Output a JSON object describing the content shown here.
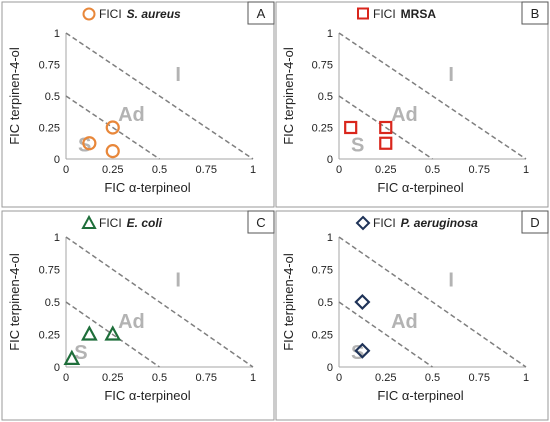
{
  "chart_data": [
    {
      "panel": "A",
      "type": "scatter",
      "legend": {
        "prefix": "FICI",
        "organism": "S. aureus",
        "organism_italic": true
      },
      "marker": {
        "shape": "circle",
        "color": "#e8873a"
      },
      "xlabel": "FIC α-terpineol",
      "ylabel": "FIC terpinen-4-ol",
      "xlim": [
        0,
        1
      ],
      "ylim": [
        0,
        1
      ],
      "xticks": [
        "0",
        "0.25",
        "0.5",
        "0.75",
        "1"
      ],
      "yticks": [
        "0",
        "0.25",
        "0.5",
        "0.75",
        "1"
      ],
      "lines": [
        {
          "from": [
            0,
            1
          ],
          "to": [
            1,
            0
          ]
        },
        {
          "from": [
            0,
            0.5
          ],
          "to": [
            0.5,
            0
          ]
        }
      ],
      "regions": [
        {
          "label": "I",
          "x": 0.6,
          "y": 0.62
        },
        {
          "label": "Ad",
          "x": 0.35,
          "y": 0.3
        },
        {
          "label": "S",
          "x": 0.1,
          "y": 0.06
        }
      ],
      "points": [
        {
          "x": 0.125,
          "y": 0.125
        },
        {
          "x": 0.25,
          "y": 0.25
        },
        {
          "x": 0.25,
          "y": 0.0625
        }
      ]
    },
    {
      "panel": "B",
      "type": "scatter",
      "legend": {
        "prefix": "FICI",
        "organism": "MRSA",
        "organism_italic": false
      },
      "marker": {
        "shape": "square",
        "color": "#d9261c"
      },
      "xlabel": "FIC α-terpineol",
      "ylabel": "FIC terpinen-4-ol",
      "xlim": [
        0,
        1
      ],
      "ylim": [
        0,
        1
      ],
      "xticks": [
        "0",
        "0.25",
        "0.5",
        "0.75",
        "1"
      ],
      "yticks": [
        "0",
        "0.25",
        "0.5",
        "0.75",
        "1"
      ],
      "lines": [
        {
          "from": [
            0,
            1
          ],
          "to": [
            1,
            0
          ]
        },
        {
          "from": [
            0,
            0.5
          ],
          "to": [
            0.5,
            0
          ]
        }
      ],
      "regions": [
        {
          "label": "I",
          "x": 0.6,
          "y": 0.62
        },
        {
          "label": "Ad",
          "x": 0.35,
          "y": 0.3
        },
        {
          "label": "S",
          "x": 0.1,
          "y": 0.06
        }
      ],
      "points": [
        {
          "x": 0.0625,
          "y": 0.25
        },
        {
          "x": 0.25,
          "y": 0.25
        },
        {
          "x": 0.25,
          "y": 0.125
        }
      ]
    },
    {
      "panel": "C",
      "type": "scatter",
      "legend": {
        "prefix": "FICI",
        "organism": "E. coli",
        "organism_italic": true
      },
      "marker": {
        "shape": "triangle",
        "color": "#1e6e3a"
      },
      "xlabel": "FIC α-terpineol",
      "ylabel": "FIC terpinen-4-ol",
      "xlim": [
        0,
        1
      ],
      "ylim": [
        0,
        1
      ],
      "xticks": [
        "0",
        "0.25",
        "0.5",
        "0.75",
        "1"
      ],
      "yticks": [
        "0",
        "0.25",
        "0.5",
        "0.75",
        "1"
      ],
      "lines": [
        {
          "from": [
            0,
            1
          ],
          "to": [
            1,
            0
          ]
        },
        {
          "from": [
            0,
            0.5
          ],
          "to": [
            0.5,
            0
          ]
        }
      ],
      "regions": [
        {
          "label": "I",
          "x": 0.6,
          "y": 0.62
        },
        {
          "label": "Ad",
          "x": 0.35,
          "y": 0.3
        },
        {
          "label": "S",
          "x": 0.08,
          "y": 0.06
        }
      ],
      "points": [
        {
          "x": 0.03125,
          "y": 0.0625
        },
        {
          "x": 0.125,
          "y": 0.25
        },
        {
          "x": 0.25,
          "y": 0.25
        }
      ]
    },
    {
      "panel": "D",
      "type": "scatter",
      "legend": {
        "prefix": "FICI",
        "organism": "P. aeruginosa",
        "organism_italic": true
      },
      "marker": {
        "shape": "diamond",
        "color": "#1f3358"
      },
      "xlabel": "FIC α-terpineol",
      "ylabel": "FIC terpinen-4-ol",
      "xlim": [
        0,
        1
      ],
      "ylim": [
        0,
        1
      ],
      "xticks": [
        "0",
        "0.25",
        "0.5",
        "0.75",
        "1"
      ],
      "yticks": [
        "0",
        "0.25",
        "0.5",
        "0.75",
        "1"
      ],
      "lines": [
        {
          "from": [
            0,
            1
          ],
          "to": [
            1,
            0
          ]
        },
        {
          "from": [
            0,
            0.5
          ],
          "to": [
            0.5,
            0
          ]
        }
      ],
      "regions": [
        {
          "label": "I",
          "x": 0.6,
          "y": 0.62
        },
        {
          "label": "Ad",
          "x": 0.35,
          "y": 0.3
        },
        {
          "label": "S",
          "x": 0.1,
          "y": 0.06
        }
      ],
      "points": [
        {
          "x": 0.125,
          "y": 0.5
        },
        {
          "x": 0.125,
          "y": 0.125
        }
      ]
    }
  ]
}
